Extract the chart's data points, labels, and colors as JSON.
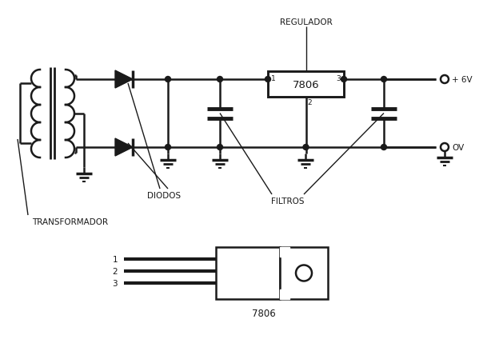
{
  "background_color": "#ffffff",
  "line_color": "#1a1a1a",
  "line_width": 1.8,
  "font_size": 7.5,
  "fig_width": 6.04,
  "fig_height": 4.35,
  "dpi": 100,
  "labels": {
    "regulador": "REGULADOR",
    "7806_box": "7806",
    "diodos": "DIODOS",
    "filtros": "FILTROS",
    "transformador": "TRANSFORMADOR",
    "plus6v": "+ 6V",
    "ov": "OV",
    "7806_pkg": "7806"
  }
}
